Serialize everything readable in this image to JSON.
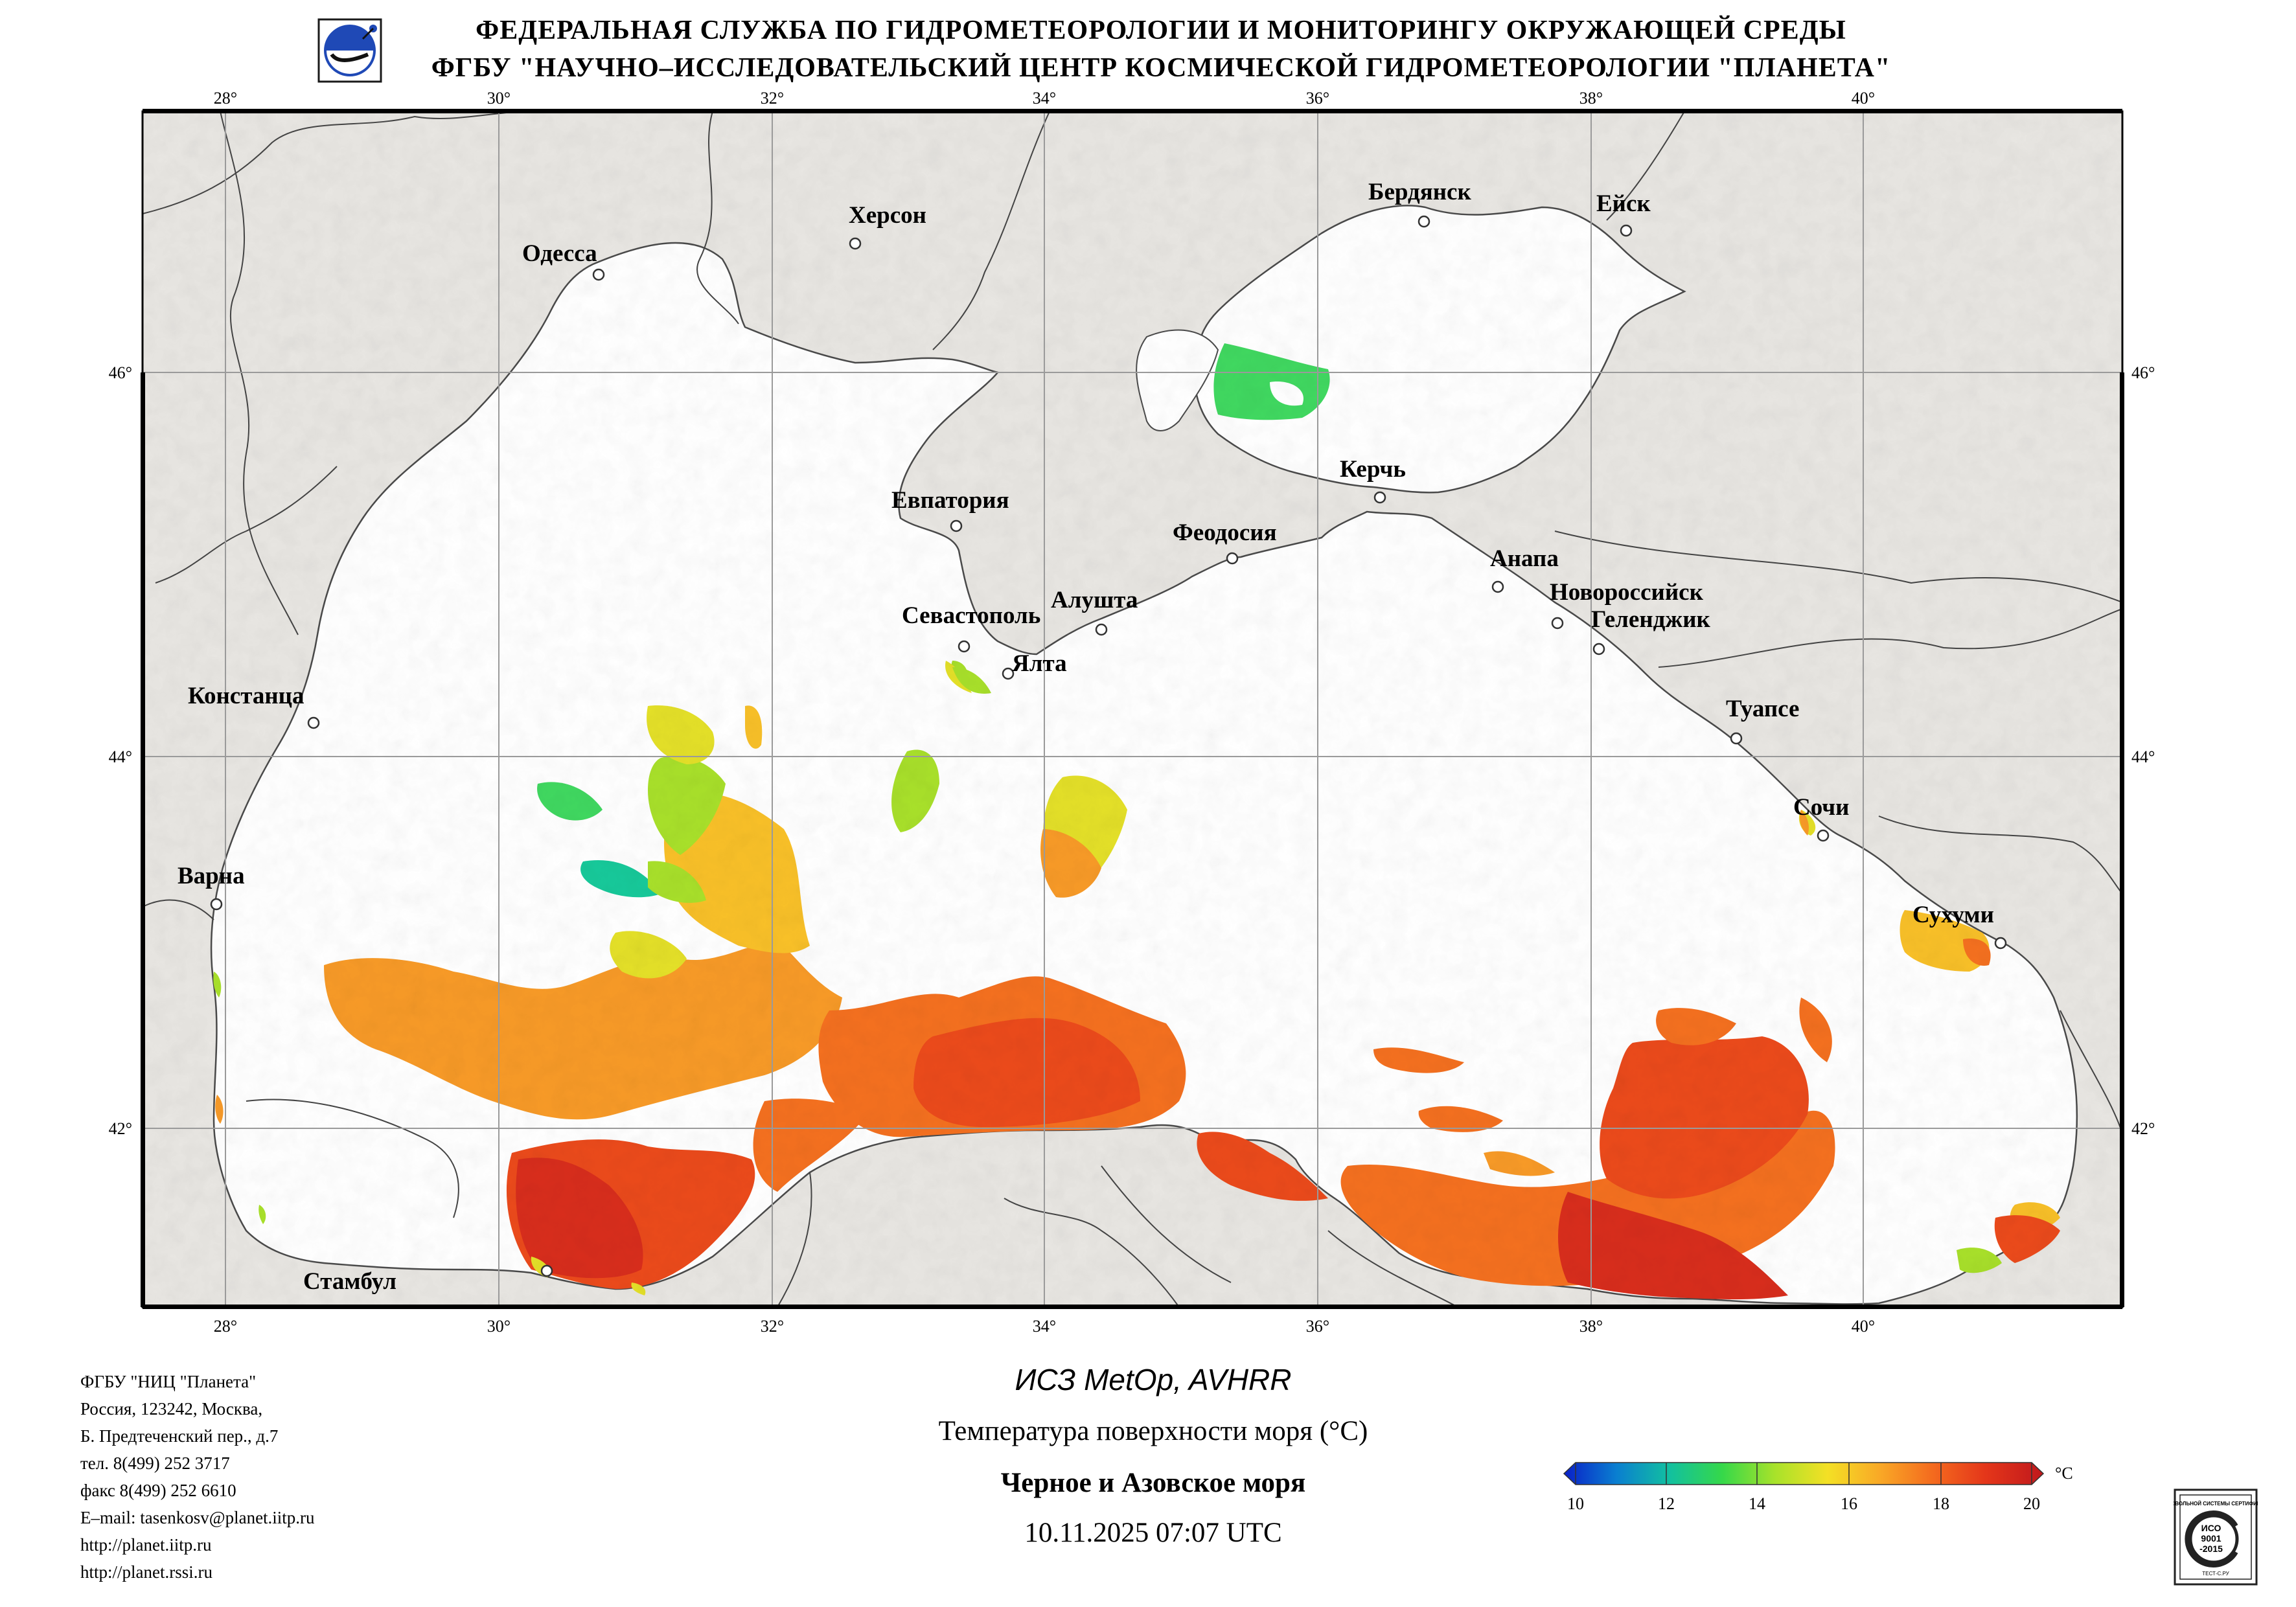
{
  "header": {
    "line1": "ФЕДЕРАЛЬНАЯ СЛУЖБА ПО ГИДРОМЕТЕОРОЛОГИИ И МОНИТОРИНГУ ОКРУЖАЮЩЕЙ СРЕДЫ",
    "line2": "ФГБУ \"НАУЧНО–ИССЛЕДОВАТЕЛЬСКИЙ ЦЕНТР КОСМИЧЕСКОЙ ГИДРОМЕТЕОРОЛОГИИ \"ПЛАНЕТА\"",
    "logo_icon": "planeta-logo-icon"
  },
  "map": {
    "longitude_labels": [
      "28°",
      "30°",
      "32°",
      "34°",
      "36°",
      "38°",
      "40°"
    ],
    "latitude_labels": [
      "46°",
      "44°",
      "42°"
    ],
    "colors": {
      "land": "#e8e6e2",
      "sea": "#ffffff",
      "coast": "#505050",
      "grid": "#9a9a9a",
      "frame": "#000000"
    },
    "cities": [
      {
        "name": "Одесса"
      },
      {
        "name": "Херсон"
      },
      {
        "name": "Бердянск"
      },
      {
        "name": "Ейск"
      },
      {
        "name": "Евпатория"
      },
      {
        "name": "Феодосия"
      },
      {
        "name": "Керчь"
      },
      {
        "name": "Анапа"
      },
      {
        "name": "Новороссийск"
      },
      {
        "name": "Геленджик"
      },
      {
        "name": "Севастополь"
      },
      {
        "name": "Алушта"
      },
      {
        "name": "Ялта"
      },
      {
        "name": "Констанца"
      },
      {
        "name": "Туапсе"
      },
      {
        "name": "Сочи"
      },
      {
        "name": "Варна"
      },
      {
        "name": "Сухуми"
      },
      {
        "name": "Стамбул"
      }
    ]
  },
  "footer_left": [
    "ФГБУ \"НИЦ \"Планета\"",
    "Россия, 123242, Москва,",
    "Б. Предтеченский пер., д.7",
    "тел. 8(499) 252 3717",
    "факс 8(499) 252 6610",
    "E–mail: tasenkosv@planet.iitp.ru",
    "http://planet.iitp.ru",
    "http://planet.rssi.ru"
  ],
  "product": {
    "satellite": "ИСЗ MetOp, AVHRR",
    "parameter": "Температура поверхности моря (°C)",
    "region": "Черное и Азовское моря",
    "datetime": "10.11.2025 07:07 UTC"
  },
  "colorbar": {
    "ticks": [
      "10",
      "12",
      "14",
      "16",
      "18",
      "20"
    ],
    "unit": "°C",
    "range": [
      10,
      20
    ],
    "colors": [
      "#0a1fc8",
      "#0a7fd0",
      "#12c0a0",
      "#35d84a",
      "#a8e22a",
      "#f4e025",
      "#f9a826",
      "#f46a1e",
      "#e4361a",
      "#c0181c"
    ]
  },
  "sst_colors": {
    "c12": "#17c99a",
    "c13": "#40d860",
    "c14": "#a8e02a",
    "c15": "#e4e028",
    "c16": "#f8c028",
    "c17": "#f79a27",
    "c18": "#f4701f",
    "c19": "#eb4a1b",
    "c20": "#d82d1c"
  },
  "certificate": {
    "icon": "iso-certificate-icon",
    "top_text": "ДОБРОВОЛЬНОЙ СИСТЕМЫ СЕРТИФИКАЦИИ",
    "line1": "ИСО",
    "line2": "9001",
    "line3": "-2015",
    "bottom_text": "ТЕСТ-С.РУ"
  }
}
